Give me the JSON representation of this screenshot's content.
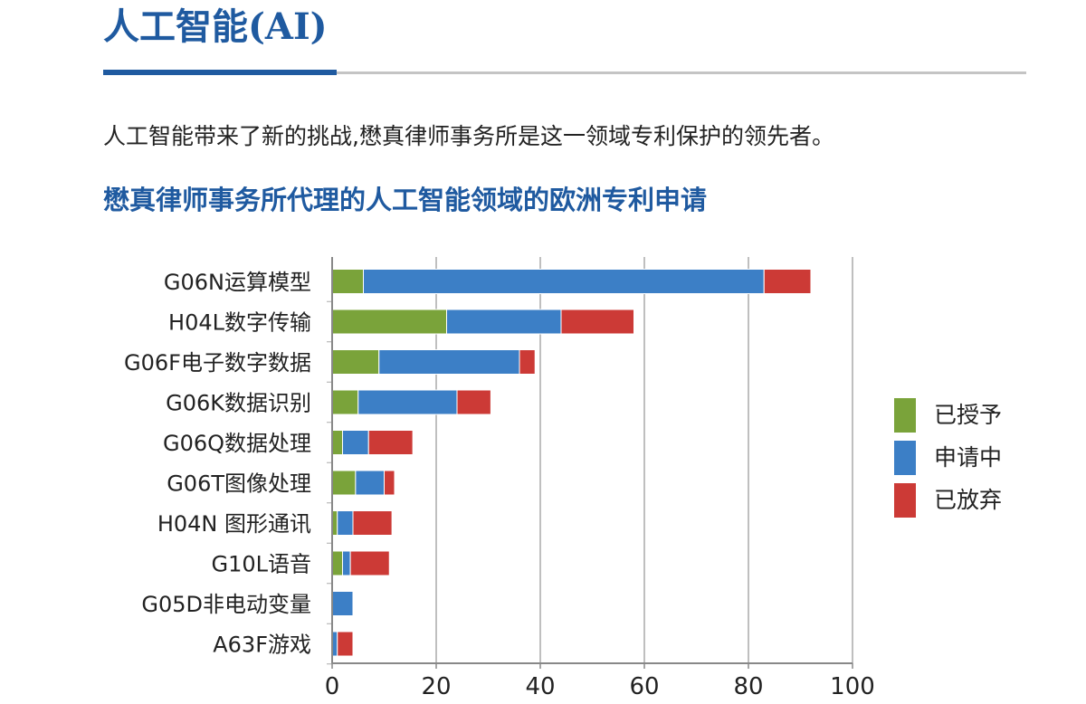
{
  "header": {
    "title": "人工智能(AI)"
  },
  "intro": {
    "text": "人工智能带来了新的挑战,懋真律师事务所是这一领域专利保护的领先者。"
  },
  "colors": {
    "brand_blue": "#1f5aa0",
    "granted": "#7aa33a",
    "pending": "#3c7fc6",
    "abandoned": "#cc3a36",
    "grid": "#aaaaaa"
  },
  "chart_data": {
    "type": "bar",
    "orientation": "horizontal",
    "stacked": true,
    "title": "懋真律师事务所代理的人工智能领域的欧洲专利申请",
    "categories": [
      "G06N运算模型",
      "H04L数字传输",
      "G06F电子数字数据",
      "G06K数据识别",
      "G06Q数据处理",
      "G06T图像处理",
      "H04N 图形通讯",
      "G10L语音",
      "G05D非电动变量",
      "A63F游戏"
    ],
    "series": [
      {
        "name": "已授予",
        "color": "#7aa33a",
        "values": [
          6,
          22,
          9,
          5,
          2,
          4.5,
          1,
          2,
          0,
          0
        ]
      },
      {
        "name": "申请中",
        "color": "#3c7fc6",
        "values": [
          77,
          22,
          27,
          19,
          5,
          5.5,
          3,
          1.5,
          4,
          1
        ]
      },
      {
        "name": "已放弃",
        "color": "#cc3a36",
        "values": [
          9,
          14,
          3,
          6.5,
          8.5,
          2,
          7.5,
          7.5,
          0,
          3
        ]
      }
    ],
    "xlim": [
      0,
      100
    ],
    "xticks": [
      "0",
      "20",
      "40",
      "60",
      "80",
      "100"
    ],
    "xtick_values": [
      0,
      20,
      40,
      60,
      80,
      100
    ],
    "grid": "vertical",
    "legend_position": "right"
  }
}
